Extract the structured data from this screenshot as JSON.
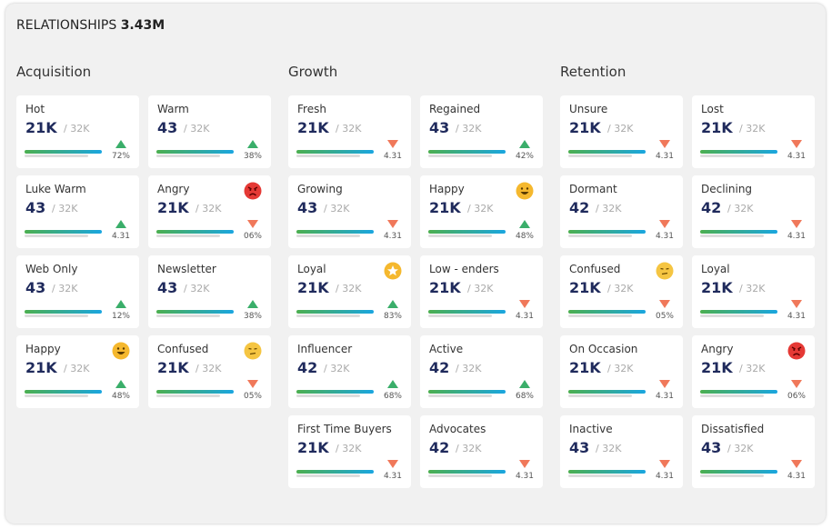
{
  "header": {
    "title": "RELATIONSHIPS",
    "value": "3.43M"
  },
  "sections": [
    {
      "title": "Acquisition",
      "cards": [
        {
          "label": "Hot",
          "value": "21K",
          "total": "/ 32K",
          "change": "72%",
          "direction": "up"
        },
        {
          "label": "Warm",
          "value": "43",
          "total": "/ 32K",
          "change": "38%",
          "direction": "up"
        },
        {
          "label": "Luke Warm",
          "value": "43",
          "total": "/ 32K",
          "change": "4.31",
          "direction": "up"
        },
        {
          "label": "Angry",
          "value": "21K",
          "total": "/ 32K",
          "change": "06%",
          "direction": "down",
          "icon": "angry"
        },
        {
          "label": "Web Only",
          "value": "43",
          "total": "/ 32K",
          "change": "12%",
          "direction": "up"
        },
        {
          "label": "Newsletter",
          "value": "43",
          "total": "/ 32K",
          "change": "38%",
          "direction": "up"
        },
        {
          "label": "Happy",
          "value": "21K",
          "total": "/ 32K",
          "change": "48%",
          "direction": "up",
          "icon": "happy"
        },
        {
          "label": "Confused",
          "value": "21K",
          "total": "/ 32K",
          "change": "05%",
          "direction": "down",
          "icon": "confused"
        }
      ]
    },
    {
      "title": "Growth",
      "cards": [
        {
          "label": "Fresh",
          "value": "21K",
          "total": "/ 32K",
          "change": "4.31",
          "direction": "down"
        },
        {
          "label": "Regained",
          "value": "43",
          "total": "/ 32K",
          "change": "42%",
          "direction": "up"
        },
        {
          "label": "Growing",
          "value": "43",
          "total": "/ 32K",
          "change": "4.31",
          "direction": "down"
        },
        {
          "label": "Happy",
          "value": "21K",
          "total": "/ 32K",
          "change": "48%",
          "direction": "up",
          "icon": "happy"
        },
        {
          "label": "Loyal",
          "value": "21K",
          "total": "/ 32K",
          "change": "83%",
          "direction": "up",
          "icon": "star"
        },
        {
          "label": "Low - enders",
          "value": "21K",
          "total": "/ 32K",
          "change": "4.31",
          "direction": "down"
        },
        {
          "label": "Influencer",
          "value": "42",
          "total": "/ 32K",
          "change": "68%",
          "direction": "up"
        },
        {
          "label": "Active",
          "value": "42",
          "total": "/ 32K",
          "change": "68%",
          "direction": "up"
        },
        {
          "label": "First Time Buyers",
          "value": "21K",
          "total": "/ 32K",
          "change": "4.31",
          "direction": "down"
        },
        {
          "label": "Advocates",
          "value": "42",
          "total": "/ 32K",
          "change": "4.31",
          "direction": "down"
        }
      ]
    },
    {
      "title": "Retention",
      "cards": [
        {
          "label": "Unsure",
          "value": "21K",
          "total": "/ 32K",
          "change": "4.31",
          "direction": "down"
        },
        {
          "label": "Lost",
          "value": "21K",
          "total": "/ 32K",
          "change": "4.31",
          "direction": "down"
        },
        {
          "label": "Dormant",
          "value": "42",
          "total": "/ 32K",
          "change": "4.31",
          "direction": "down"
        },
        {
          "label": "Declining",
          "value": "42",
          "total": "/ 32K",
          "change": "4.31",
          "direction": "down"
        },
        {
          "label": "Confused",
          "value": "21K",
          "total": "/ 32K",
          "change": "05%",
          "direction": "down",
          "icon": "confused"
        },
        {
          "label": "Loyal",
          "value": "21K",
          "total": "/ 32K",
          "change": "4.31",
          "direction": "down"
        },
        {
          "label": "On Occasion",
          "value": "21K",
          "total": "/ 32K",
          "change": "4.31",
          "direction": "down"
        },
        {
          "label": "Angry",
          "value": "21K",
          "total": "/ 32K",
          "change": "06%",
          "direction": "down",
          "icon": "angry"
        },
        {
          "label": "Inactive",
          "value": "43",
          "total": "/ 32K",
          "change": "4.31",
          "direction": "down"
        },
        {
          "label": "Dissatisfied",
          "value": "43",
          "total": "/ 32K",
          "change": "4.31",
          "direction": "down"
        }
      ]
    }
  ]
}
